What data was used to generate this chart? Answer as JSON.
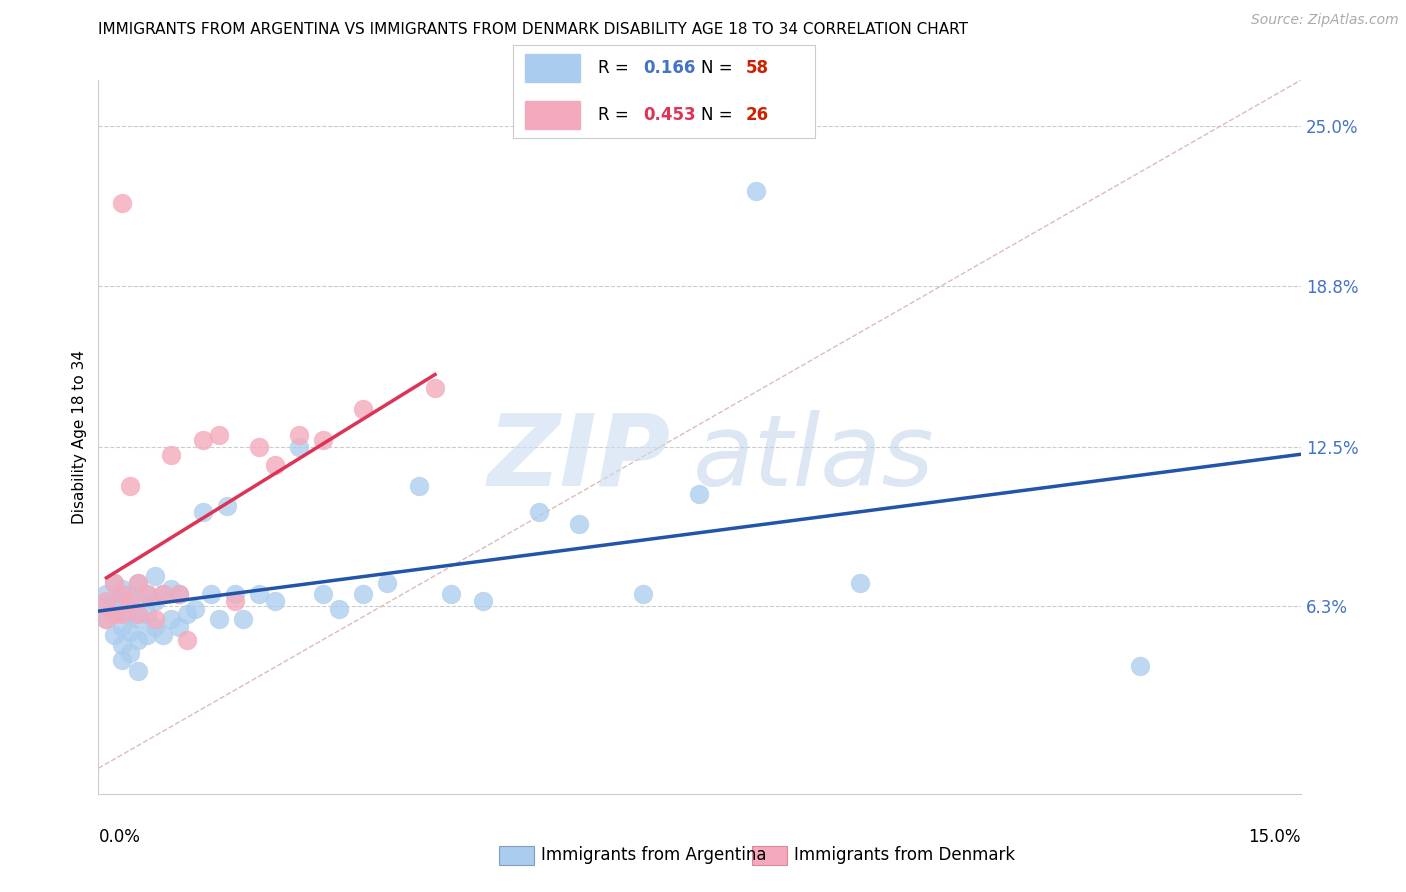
{
  "title": "IMMIGRANTS FROM ARGENTINA VS IMMIGRANTS FROM DENMARK DISABILITY AGE 18 TO 34 CORRELATION CHART",
  "source": "Source: ZipAtlas.com",
  "ylabel": "Disability Age 18 to 34",
  "ytick_labels": [
    "6.3%",
    "12.5%",
    "18.8%",
    "25.0%"
  ],
  "ytick_vals": [
    0.063,
    0.125,
    0.188,
    0.25
  ],
  "xlim": [
    0.0,
    0.15
  ],
  "ylim": [
    -0.01,
    0.268
  ],
  "r_argentina": 0.166,
  "n_argentina": 58,
  "r_denmark": 0.453,
  "n_denmark": 26,
  "color_argentina": "#aaccee",
  "color_denmark": "#f4aabc",
  "line_color_argentina": "#2255aa",
  "line_color_denmark": "#dd3355",
  "diagonal_color": "#ddbbbb",
  "legend_label_argentina": "Immigrants from Argentina",
  "legend_label_denmark": "Immigrants from Denmark",
  "argentina_x": [
    0.001,
    0.001,
    0.001,
    0.002,
    0.002,
    0.002,
    0.002,
    0.003,
    0.003,
    0.003,
    0.003,
    0.003,
    0.004,
    0.004,
    0.004,
    0.004,
    0.005,
    0.005,
    0.005,
    0.005,
    0.005,
    0.006,
    0.006,
    0.006,
    0.007,
    0.007,
    0.007,
    0.008,
    0.008,
    0.009,
    0.009,
    0.01,
    0.01,
    0.011,
    0.012,
    0.013,
    0.014,
    0.015,
    0.016,
    0.017,
    0.018,
    0.02,
    0.022,
    0.025,
    0.028,
    0.03,
    0.033,
    0.036,
    0.04,
    0.044,
    0.048,
    0.055,
    0.06,
    0.068,
    0.075,
    0.082,
    0.095,
    0.13
  ],
  "argentina_y": [
    0.068,
    0.063,
    0.058,
    0.072,
    0.065,
    0.06,
    0.052,
    0.07,
    0.063,
    0.055,
    0.048,
    0.042,
    0.068,
    0.06,
    0.053,
    0.045,
    0.072,
    0.065,
    0.058,
    0.05,
    0.038,
    0.068,
    0.06,
    0.052,
    0.075,
    0.065,
    0.055,
    0.068,
    0.052,
    0.07,
    0.058,
    0.068,
    0.055,
    0.06,
    0.062,
    0.1,
    0.068,
    0.058,
    0.102,
    0.068,
    0.058,
    0.068,
    0.065,
    0.125,
    0.068,
    0.062,
    0.068,
    0.072,
    0.11,
    0.068,
    0.065,
    0.1,
    0.095,
    0.068,
    0.107,
    0.225,
    0.072,
    0.04
  ],
  "denmark_x": [
    0.001,
    0.001,
    0.002,
    0.002,
    0.003,
    0.003,
    0.003,
    0.004,
    0.004,
    0.005,
    0.005,
    0.006,
    0.007,
    0.008,
    0.009,
    0.01,
    0.011,
    0.013,
    0.015,
    0.017,
    0.02,
    0.022,
    0.025,
    0.028,
    0.033,
    0.042
  ],
  "denmark_y": [
    0.065,
    0.058,
    0.072,
    0.06,
    0.22,
    0.068,
    0.06,
    0.11,
    0.065,
    0.072,
    0.06,
    0.068,
    0.058,
    0.068,
    0.122,
    0.068,
    0.05,
    0.128,
    0.13,
    0.065,
    0.125,
    0.118,
    0.13,
    0.128,
    0.14,
    0.148
  ]
}
